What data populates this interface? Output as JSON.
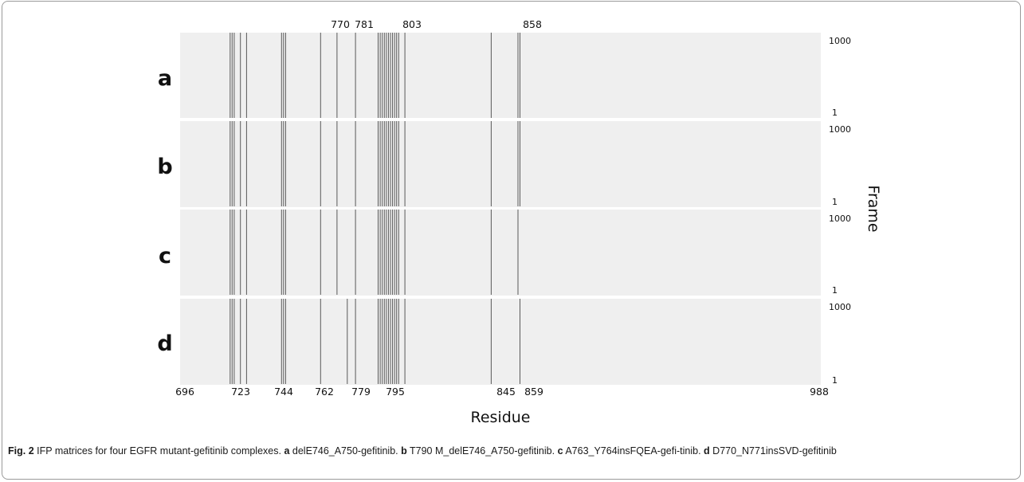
{
  "figure": {
    "top_ticks": [
      "770",
      "781",
      "803",
      "858"
    ],
    "bottom_ticks": [
      "696",
      "723",
      "744",
      "762",
      "779",
      "795",
      "845",
      "859",
      "988"
    ],
    "xlabel": "Residue",
    "ylabel": "Frame",
    "panels": [
      {
        "letter": "a",
        "y_top": "1000",
        "y_bottom": "1"
      },
      {
        "letter": "b",
        "y_top": "1000",
        "y_bottom": "1"
      },
      {
        "letter": "c",
        "y_top": "1000",
        "y_bottom": "1"
      },
      {
        "letter": "d",
        "y_top": "1000",
        "y_bottom": "1"
      }
    ],
    "colors": {
      "matrix_bg": "#efefef",
      "interaction": "#333333"
    }
  },
  "caption": {
    "fig_label": "Fig. 2",
    "text": "IFP matrices for four EGFR mutant-gefitinib complexes.",
    "parts": [
      {
        "letter": "a",
        "text": "delE746_A750-gefitinib."
      },
      {
        "letter": "b",
        "text": "T790 M_delE746_A750-gefitinib."
      },
      {
        "letter": "c",
        "text": "A763_Y764insFQEA-gefi-tinib."
      },
      {
        "letter": "d",
        "text": "D770_N771insSVD-gefitinib"
      }
    ]
  },
  "chart_data": {
    "type": "heatmap",
    "x_axis": {
      "label": "Residue",
      "range": [
        696,
        988
      ],
      "ticks_bottom": [
        696,
        723,
        744,
        762,
        779,
        795,
        845,
        859,
        988
      ],
      "ticks_top": [
        770,
        781,
        803,
        858
      ]
    },
    "y_axis": {
      "label": "Frame",
      "range": [
        1,
        1000
      ]
    },
    "panels": [
      "a",
      "b",
      "c",
      "d"
    ],
    "interacting_residues": {
      "a": [
        718,
        719,
        720,
        723,
        726,
        743,
        744,
        745,
        762,
        770,
        779,
        790,
        791,
        792,
        793,
        794,
        795,
        796,
        797,
        798,
        799,
        800,
        803,
        845,
        858,
        859
      ],
      "b": [
        718,
        719,
        720,
        723,
        726,
        743,
        744,
        745,
        762,
        770,
        779,
        790,
        791,
        792,
        793,
        794,
        795,
        796,
        797,
        798,
        799,
        800,
        803,
        845,
        858,
        859
      ],
      "c": [
        718,
        719,
        720,
        723,
        726,
        743,
        744,
        745,
        762,
        770,
        779,
        790,
        791,
        792,
        793,
        794,
        795,
        796,
        797,
        798,
        799,
        800,
        803,
        845,
        858
      ],
      "d": [
        718,
        719,
        720,
        723,
        726,
        743,
        744,
        745,
        762,
        775,
        779,
        790,
        791,
        792,
        793,
        794,
        795,
        796,
        797,
        798,
        799,
        800,
        803,
        845,
        859
      ]
    }
  }
}
